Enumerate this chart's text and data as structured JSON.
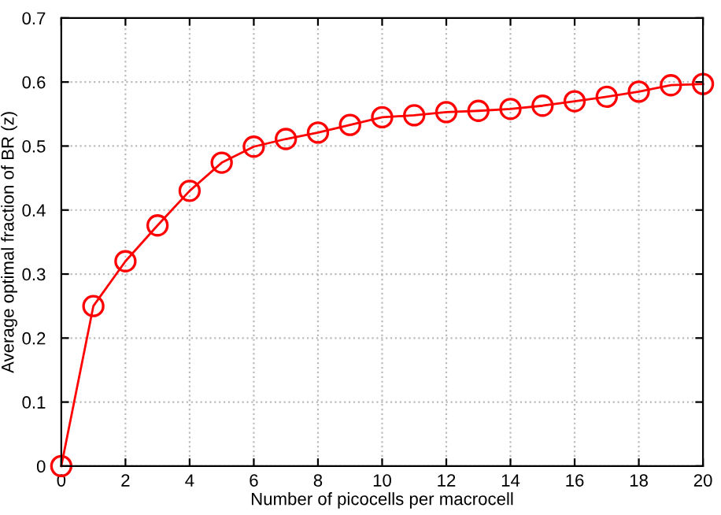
{
  "chart_data": {
    "type": "line",
    "xlabel": "Number of picocells per macrocell",
    "ylabel": "Average optimal fraction of BR (z)",
    "x": [
      0,
      1,
      2,
      3,
      4,
      5,
      6,
      7,
      8,
      9,
      10,
      11,
      12,
      13,
      14,
      15,
      16,
      17,
      18,
      19,
      20
    ],
    "series": [
      {
        "color": "#ff0000",
        "values": [
          0.0,
          0.25,
          0.32,
          0.376,
          0.43,
          0.474,
          0.499,
          0.511,
          0.521,
          0.533,
          0.545,
          0.548,
          0.553,
          0.555,
          0.558,
          0.563,
          0.57,
          0.577,
          0.585,
          0.595,
          0.597
        ]
      }
    ],
    "xlim": [
      0,
      20
    ],
    "ylim": [
      0,
      0.7
    ],
    "xticks": [
      0,
      2,
      4,
      6,
      8,
      10,
      12,
      14,
      16,
      18,
      20
    ],
    "yticks": [
      0,
      0.1,
      0.2,
      0.3,
      0.4,
      0.5,
      0.6,
      0.7
    ],
    "grid": true,
    "marker": "circle",
    "line_style": "solid"
  }
}
